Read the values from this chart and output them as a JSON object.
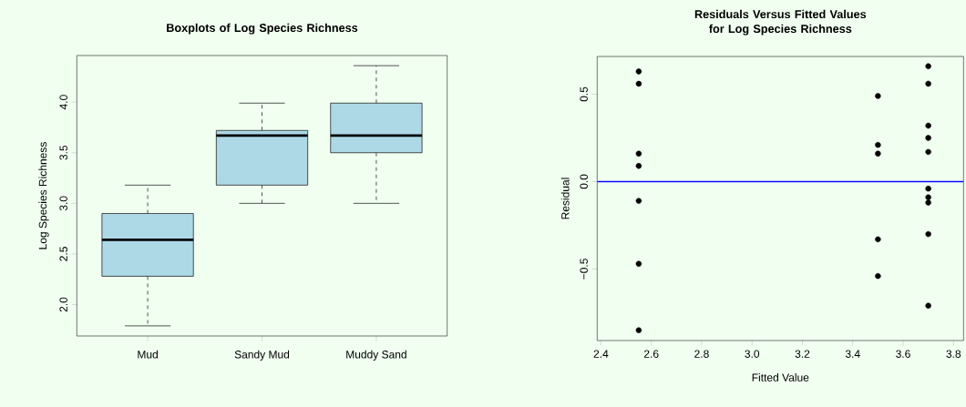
{
  "chart_data": [
    {
      "type": "box",
      "title": "Boxplots of Log Species Richness",
      "ylabel": "Log Species Richness",
      "categories": [
        "Mud",
        "Sandy Mud",
        "Muddy Sand"
      ],
      "color": "#add8e6",
      "boxes": [
        {
          "low": 1.79,
          "q1": 2.28,
          "median": 2.64,
          "q3": 2.9,
          "high": 3.18
        },
        {
          "low": 3.0,
          "q1": 3.18,
          "median": 3.67,
          "q3": 3.72,
          "high": 3.99
        },
        {
          "low": 3.0,
          "q1": 3.5,
          "median": 3.67,
          "q3": 3.99,
          "high": 4.36
        }
      ],
      "ylim": [
        1.69,
        4.46
      ],
      "yticks": [
        {
          "value": 2,
          "label": "2.0"
        },
        2.5,
        {
          "value": 3,
          "label": "3.0"
        },
        3.5,
        {
          "value": 4,
          "label": "4.0"
        }
      ]
    },
    {
      "type": "scatter",
      "title": "Residuals Versus Fitted Values for Log Species Richness",
      "xlabel": "Fitted Value",
      "ylabel": "Residual",
      "series": [
        {
          "color": "#000000",
          "x": [
            2.55,
            2.55,
            2.55,
            2.55,
            2.55,
            2.55,
            2.55,
            3.5,
            3.5,
            3.5,
            3.5,
            3.5,
            3.7,
            3.7,
            3.7,
            3.7,
            3.7,
            3.7,
            3.7,
            3.7,
            3.7,
            3.7
          ],
          "values": [
            0.63,
            0.56,
            0.16,
            0.09,
            -0.11,
            -0.47,
            -0.85,
            0.49,
            0.21,
            0.16,
            -0.33,
            -0.54,
            0.66,
            0.56,
            0.32,
            0.25,
            0.17,
            -0.04,
            -0.09,
            -0.12,
            -0.3,
            -0.71
          ]
        }
      ],
      "ref_lines": [
        {
          "axis": "y",
          "value": 0,
          "color": "#0000ff"
        }
      ],
      "xlim": [
        2.385,
        3.84
      ],
      "ylim": [
        -0.909,
        0.716
      ],
      "xticks": [
        2.4,
        2.6,
        2.8,
        {
          "value": 3,
          "label": "3.0"
        },
        3.2,
        3.4,
        3.6,
        3.8
      ],
      "yticks": [
        {
          "value": -0.5,
          "label": "−0.5"
        },
        {
          "value": 0,
          "label": "0.0"
        },
        0.5
      ]
    }
  ]
}
